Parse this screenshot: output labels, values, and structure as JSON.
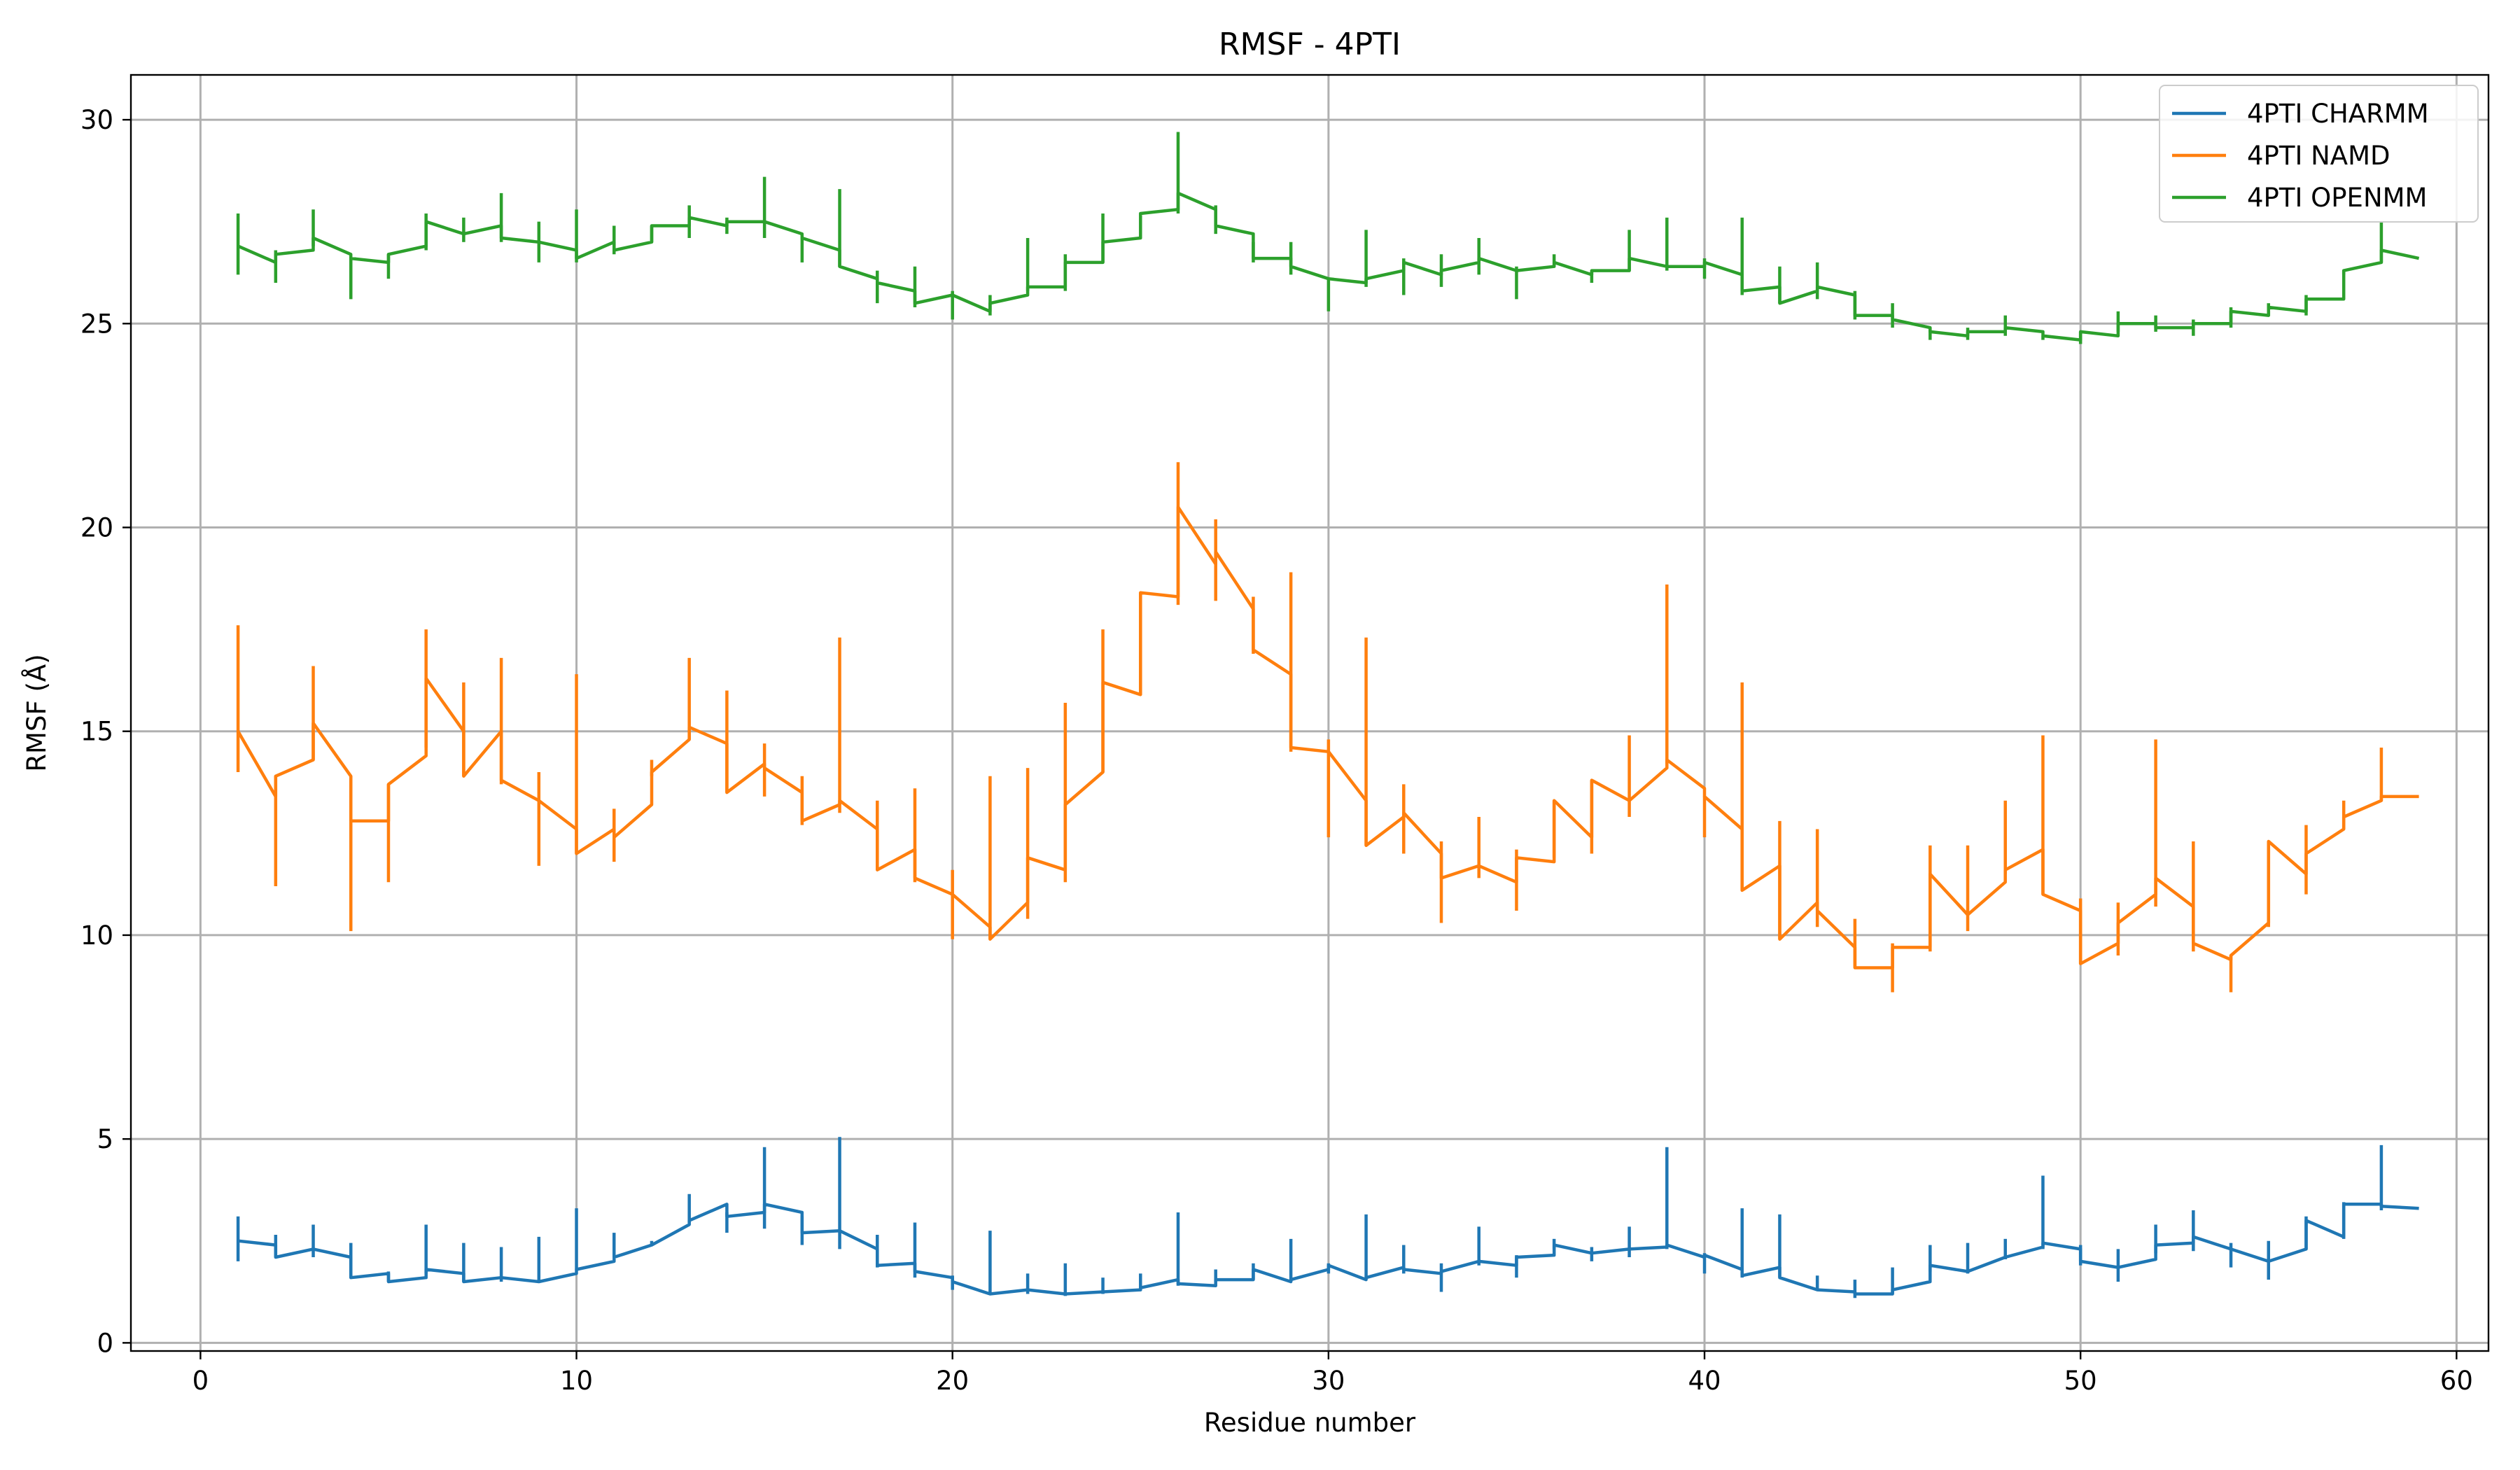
{
  "chart_data": {
    "type": "line",
    "title": "RMSF - 4PTI",
    "xlabel": "Residue number",
    "ylabel": "RMSF (Å)",
    "xlim": [
      -1.85,
      60.85
    ],
    "ylim": [
      -0.2,
      31.1
    ],
    "xticks": [
      0,
      10,
      20,
      30,
      40,
      50,
      60
    ],
    "yticks": [
      0,
      5,
      10,
      15,
      20,
      25,
      30
    ],
    "grid": true,
    "legend_position": "top-right",
    "x": [
      1,
      2,
      3,
      4,
      5,
      6,
      7,
      8,
      9,
      10,
      11,
      12,
      13,
      14,
      15,
      16,
      17,
      18,
      19,
      20,
      21,
      22,
      23,
      24,
      25,
      26,
      27,
      28,
      29,
      30,
      31,
      32,
      33,
      34,
      35,
      36,
      37,
      38,
      39,
      40,
      41,
      42,
      43,
      44,
      45,
      46,
      47,
      48,
      49,
      50,
      51,
      52,
      53,
      54,
      55,
      56,
      57,
      58
    ],
    "series": [
      {
        "name": "4PTI CHARMM",
        "color": "#1f77b4",
        "start": [
          2.5,
          2.1,
          2.3,
          1.6,
          1.5,
          1.8,
          1.5,
          1.6,
          1.5,
          1.8,
          2.1,
          2.4,
          3.0,
          3.1,
          3.4,
          2.7,
          2.75,
          1.9,
          1.75,
          1.5,
          1.2,
          1.3,
          1.2,
          1.25,
          1.35,
          1.45,
          1.55,
          1.8,
          1.55,
          1.9,
          1.6,
          1.8,
          1.75,
          2.0,
          2.1,
          2.4,
          2.2,
          2.3,
          2.4,
          2.15,
          1.65,
          1.6,
          1.3,
          1.2,
          1.3,
          1.9,
          1.75,
          2.1,
          2.45,
          2.0,
          1.85,
          2.4,
          2.6,
          2.3,
          2.0,
          3.0,
          3.4,
          3.35
        ],
        "end": [
          2.4,
          2.3,
          2.1,
          1.7,
          1.6,
          1.7,
          1.6,
          1.5,
          1.7,
          2.0,
          2.4,
          2.9,
          3.4,
          3.2,
          3.2,
          2.75,
          2.3,
          1.95,
          1.6,
          1.2,
          1.3,
          1.2,
          1.25,
          1.3,
          1.55,
          1.4,
          1.55,
          1.5,
          1.8,
          1.55,
          1.85,
          1.7,
          2.0,
          1.9,
          2.15,
          2.2,
          2.3,
          2.35,
          2.1,
          1.8,
          1.85,
          1.3,
          1.25,
          1.2,
          1.5,
          1.75,
          2.1,
          2.35,
          2.3,
          1.85,
          2.05,
          2.45,
          2.3,
          2.0,
          2.3,
          2.6,
          3.4,
          3.3
        ],
        "err_low": [
          2.0,
          2.1,
          2.1,
          1.6,
          1.5,
          1.7,
          1.5,
          1.5,
          1.5,
          1.8,
          2.1,
          2.4,
          2.95,
          2.7,
          2.8,
          2.4,
          2.3,
          1.85,
          1.6,
          1.3,
          1.2,
          1.2,
          1.15,
          1.2,
          1.35,
          1.4,
          1.5,
          1.55,
          1.5,
          1.7,
          1.6,
          1.7,
          1.25,
          1.9,
          1.6,
          2.3,
          2.0,
          2.1,
          2.3,
          1.7,
          1.6,
          1.6,
          1.3,
          1.1,
          1.2,
          1.75,
          1.7,
          2.05,
          2.3,
          1.9,
          1.5,
          2.2,
          2.25,
          1.85,
          1.55,
          2.3,
          2.55,
          3.25
        ],
        "err_high": [
          3.1,
          2.65,
          2.9,
          2.45,
          1.75,
          2.9,
          2.45,
          2.35,
          2.6,
          3.3,
          2.7,
          2.5,
          3.65,
          3.2,
          4.8,
          3.1,
          5.05,
          2.65,
          2.95,
          1.65,
          2.75,
          1.7,
          1.95,
          1.6,
          1.7,
          3.2,
          1.8,
          1.95,
          2.55,
          1.95,
          3.15,
          2.4,
          1.95,
          2.85,
          2.15,
          2.55,
          2.35,
          2.85,
          4.8,
          2.2,
          3.3,
          3.15,
          1.65,
          1.55,
          1.85,
          2.4,
          2.45,
          2.55,
          4.1,
          2.4,
          2.3,
          2.9,
          3.25,
          2.45,
          2.5,
          3.1,
          3.45,
          4.85
        ]
      },
      {
        "name": "4PTI NAMD",
        "color": "#ff7f0e",
        "start": [
          15.0,
          13.9,
          15.2,
          12.8,
          13.7,
          16.3,
          13.9,
          13.8,
          13.3,
          12.0,
          12.4,
          14.0,
          15.1,
          13.5,
          14.1,
          12.8,
          13.3,
          11.6,
          11.4,
          11.0,
          9.9,
          11.9,
          13.2,
          16.2,
          18.4,
          20.5,
          19.4,
          17.0,
          14.6,
          14.5,
          12.2,
          13.0,
          11.4,
          11.7,
          11.9,
          13.3,
          13.8,
          13.3,
          14.3,
          13.4,
          11.1,
          9.9,
          10.6,
          9.2,
          9.7,
          11.5,
          10.5,
          11.6,
          11.0,
          9.3,
          10.3,
          11.4,
          9.8,
          9.5,
          12.3,
          12.0,
          12.9,
          13.4
        ],
        "end": [
          13.4,
          14.3,
          13.9,
          12.8,
          14.4,
          15.0,
          15.0,
          13.3,
          12.6,
          12.6,
          13.2,
          14.8,
          14.7,
          14.2,
          13.5,
          13.2,
          12.6,
          12.1,
          11.0,
          10.2,
          10.8,
          11.6,
          14.0,
          15.9,
          18.3,
          19.1,
          18.0,
          16.4,
          14.5,
          13.3,
          12.9,
          12.0,
          11.7,
          11.3,
          11.8,
          12.4,
          13.3,
          14.1,
          13.6,
          12.6,
          11.7,
          10.8,
          9.7,
          9.2,
          9.7,
          10.5,
          11.3,
          12.1,
          10.6,
          9.8,
          11.0,
          10.7,
          9.4,
          10.3,
          11.5,
          12.6,
          13.3,
          13.4
        ],
        "err_low": [
          14.0,
          11.2,
          14.3,
          10.1,
          11.3,
          14.6,
          13.9,
          13.7,
          11.7,
          12.0,
          11.8,
          13.9,
          14.8,
          13.5,
          13.4,
          12.7,
          13.0,
          11.6,
          11.3,
          9.9,
          9.9,
          10.4,
          11.3,
          14.0,
          15.9,
          18.1,
          18.2,
          16.9,
          14.5,
          12.4,
          12.2,
          12.0,
          10.3,
          11.4,
          10.6,
          11.9,
          12.0,
          12.9,
          14.2,
          12.4,
          11.1,
          9.9,
          10.2,
          9.2,
          8.6,
          9.6,
          10.1,
          11.5,
          11.0,
          9.3,
          9.5,
          10.7,
          9.6,
          8.6,
          10.2,
          11.0,
          12.6,
          13.3
        ],
        "err_high": [
          17.6,
          13.9,
          16.6,
          13.9,
          13.7,
          17.5,
          16.2,
          16.8,
          14.0,
          16.4,
          13.1,
          14.3,
          16.8,
          16.0,
          14.7,
          13.9,
          17.3,
          13.3,
          13.6,
          11.6,
          13.9,
          14.1,
          15.7,
          17.5,
          18.4,
          21.6,
          20.2,
          18.3,
          18.9,
          14.8,
          17.3,
          13.7,
          12.3,
          12.9,
          12.1,
          13.3,
          13.8,
          14.9,
          18.6,
          13.4,
          16.2,
          12.8,
          12.6,
          10.4,
          9.8,
          12.2,
          12.2,
          13.3,
          14.9,
          10.9,
          10.8,
          14.8,
          12.3,
          9.5,
          12.3,
          12.7,
          13.3,
          14.6
        ]
      },
      {
        "name": "4PTI OPENMM",
        "color": "#2ca02c",
        "start": [
          26.9,
          26.7,
          27.1,
          26.6,
          26.7,
          27.5,
          27.2,
          27.1,
          27.0,
          26.6,
          26.8,
          27.4,
          27.6,
          27.5,
          27.5,
          27.1,
          26.4,
          26.0,
          25.5,
          25.7,
          25.5,
          25.9,
          26.5,
          27.0,
          27.7,
          28.2,
          27.4,
          26.6,
          26.4,
          26.1,
          26.1,
          26.5,
          26.3,
          26.6,
          26.3,
          26.5,
          26.3,
          26.6,
          26.4,
          26.5,
          25.8,
          25.5,
          25.9,
          25.2,
          25.1,
          24.8,
          24.8,
          24.9,
          24.7,
          24.8,
          25.0,
          24.9,
          25.0,
          25.3,
          25.4,
          25.6,
          26.3,
          26.8
        ],
        "end": [
          26.5,
          26.8,
          26.7,
          26.5,
          26.9,
          27.2,
          27.4,
          27.0,
          26.8,
          27.0,
          27.0,
          27.4,
          27.4,
          27.5,
          27.2,
          26.8,
          26.1,
          25.8,
          25.7,
          25.3,
          25.7,
          25.9,
          26.5,
          27.1,
          27.8,
          27.8,
          27.2,
          26.6,
          26.1,
          26.0,
          26.3,
          26.2,
          26.5,
          26.3,
          26.4,
          26.2,
          26.3,
          26.4,
          26.4,
          26.2,
          25.9,
          25.8,
          25.7,
          25.2,
          24.9,
          24.7,
          24.8,
          24.8,
          24.6,
          24.7,
          25.0,
          24.9,
          25.0,
          25.2,
          25.3,
          25.6,
          26.5,
          26.6
        ],
        "err_low": [
          26.2,
          26.0,
          26.9,
          25.6,
          26.1,
          26.8,
          27.0,
          27.0,
          26.5,
          26.5,
          26.7,
          27.0,
          27.1,
          27.2,
          27.1,
          26.5,
          26.4,
          25.5,
          25.4,
          25.1,
          25.2,
          25.8,
          25.8,
          26.5,
          27.7,
          27.7,
          27.2,
          26.5,
          26.2,
          25.3,
          25.9,
          25.7,
          25.9,
          26.2,
          25.6,
          26.4,
          26.0,
          26.3,
          26.3,
          26.1,
          25.7,
          25.5,
          25.6,
          25.1,
          24.9,
          24.6,
          24.6,
          24.7,
          24.6,
          24.5,
          24.8,
          24.8,
          24.7,
          24.9,
          25.2,
          25.2,
          26.2,
          26.5
        ],
        "err_high": [
          27.7,
          26.8,
          27.8,
          26.6,
          26.7,
          27.7,
          27.6,
          28.2,
          27.5,
          27.8,
          27.4,
          27.4,
          27.9,
          27.6,
          28.6,
          27.1,
          28.3,
          26.3,
          26.4,
          25.8,
          25.7,
          27.1,
          26.7,
          27.7,
          27.7,
          29.7,
          27.9,
          27.0,
          27.0,
          26.1,
          27.3,
          26.6,
          26.7,
          27.1,
          26.4,
          26.7,
          26.3,
          27.3,
          27.6,
          26.6,
          27.6,
          26.4,
          26.5,
          25.8,
          25.5,
          24.9,
          24.9,
          25.2,
          24.7,
          24.8,
          25.3,
          25.2,
          25.1,
          25.4,
          25.5,
          25.7,
          26.3,
          27.5
        ]
      }
    ]
  }
}
